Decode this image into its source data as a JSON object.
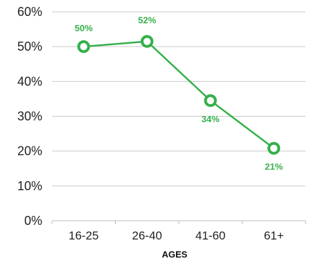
{
  "chart_data": {
    "type": "line",
    "title": "",
    "xlabel": "AGES",
    "ylabel": "",
    "categories": [
      "16-25",
      "26-40",
      "41-60",
      "61+"
    ],
    "series": [
      {
        "values": [
          50,
          51.5,
          34.5,
          20.8
        ],
        "data_labels": [
          "50%",
          "52%",
          "34%",
          "21%"
        ]
      }
    ],
    "y_ticks": [
      "0%",
      "10%",
      "20%",
      "30%",
      "40%",
      "50%",
      "60%"
    ],
    "ylim": [
      0,
      60
    ],
    "grid": true,
    "colors": {
      "series": "#35b04a",
      "label": "#35b04a",
      "grid": "#c9c9c9"
    }
  }
}
